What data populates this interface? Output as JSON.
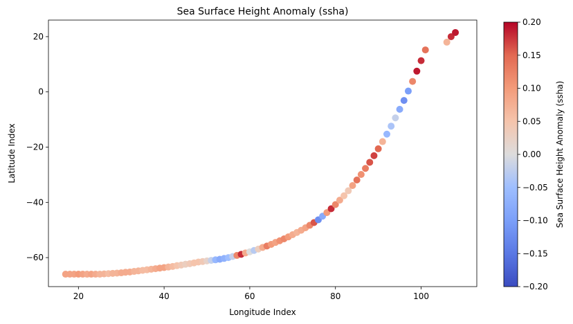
{
  "chart_data": {
    "type": "scatter",
    "title": "Sea Surface Height Anomaly (ssha)",
    "xlabel": "Longitude Index",
    "ylabel": "Latitude Index",
    "xlim": [
      13,
      113
    ],
    "ylim": [
      -70.5,
      26
    ],
    "xticks": [
      20,
      40,
      60,
      80,
      100
    ],
    "yticks": [
      20,
      0,
      -20,
      -40,
      -60
    ],
    "colorbar": {
      "label": "Sea Surface Height Anomaly (ssha)",
      "colormap": "coolwarm",
      "min": -0.2,
      "max": 0.2,
      "ticks": [
        "0.20",
        "0.15",
        "0.10",
        "0.05",
        "0.00",
        "−0.05",
        "−0.10",
        "−0.15",
        "−0.20"
      ],
      "tick_values": [
        0.2,
        0.15,
        0.1,
        0.05,
        0.0,
        -0.05,
        -0.1,
        -0.15,
        -0.2
      ]
    },
    "points": [
      [
        17,
        -66,
        0.09
      ],
      [
        18,
        -66,
        0.09
      ],
      [
        19,
        -66,
        0.09
      ],
      [
        20,
        -66,
        0.1
      ],
      [
        21,
        -66,
        0.09
      ],
      [
        22,
        -66,
        0.08
      ],
      [
        23,
        -66,
        0.09
      ],
      [
        24,
        -66,
        0.08
      ],
      [
        25,
        -66,
        0.07
      ],
      [
        26,
        -65.9,
        0.07
      ],
      [
        27,
        -65.8,
        0.06
      ],
      [
        28,
        -65.7,
        0.07
      ],
      [
        29,
        -65.6,
        0.07
      ],
      [
        30,
        -65.5,
        0.08
      ],
      [
        31,
        -65.3,
        0.08
      ],
      [
        32,
        -65.2,
        0.08
      ],
      [
        33,
        -65,
        0.07
      ],
      [
        34,
        -64.8,
        0.07
      ],
      [
        35,
        -64.6,
        0.06
      ],
      [
        36,
        -64.4,
        0.06
      ],
      [
        37,
        -64.2,
        0.07
      ],
      [
        38,
        -64,
        0.08
      ],
      [
        39,
        -63.8,
        0.09
      ],
      [
        40,
        -63.6,
        0.09
      ],
      [
        41,
        -63.4,
        0.07
      ],
      [
        42,
        -63.2,
        0.06
      ],
      [
        43,
        -62.9,
        0.05
      ],
      [
        44,
        -62.7,
        0.04
      ],
      [
        45,
        -62.4,
        0.03
      ],
      [
        46,
        -62.2,
        0.04
      ],
      [
        47,
        -61.9,
        0.05
      ],
      [
        48,
        -61.6,
        0.05
      ],
      [
        49,
        -61.4,
        0.04
      ],
      [
        50,
        -61.2,
        0.02
      ],
      [
        51,
        -61,
        -0.02
      ],
      [
        52,
        -60.8,
        -0.06
      ],
      [
        53,
        -60.6,
        -0.08
      ],
      [
        54,
        -60.3,
        -0.07
      ],
      [
        55,
        -60,
        -0.05
      ],
      [
        56,
        -59.6,
        -0.02
      ],
      [
        57,
        -59.2,
        0.12
      ],
      [
        58,
        -58.8,
        0.18
      ],
      [
        59,
        -58.3,
        0.08
      ],
      [
        60,
        -57.9,
        0
      ],
      [
        61,
        -57.4,
        -0.03
      ],
      [
        62,
        -56.9,
        0.03
      ],
      [
        63,
        -56.3,
        0.08
      ],
      [
        64,
        -55.8,
        0.13
      ],
      [
        65,
        -55.2,
        0.1
      ],
      [
        66,
        -54.5,
        0.09
      ],
      [
        67,
        -53.9,
        0.11
      ],
      [
        68,
        -53.2,
        0.12
      ],
      [
        69,
        -52.5,
        0.1
      ],
      [
        70,
        -51.7,
        0.08
      ],
      [
        71,
        -50.9,
        0.07
      ],
      [
        72,
        -50.1,
        0.08
      ],
      [
        73,
        -49.2,
        0.09
      ],
      [
        74,
        -48.3,
        0.12
      ],
      [
        75,
        -47.3,
        0.16
      ],
      [
        76,
        -46.3,
        -0.12
      ],
      [
        77,
        -45,
        -0.08
      ],
      [
        78,
        -43.7,
        0.1
      ],
      [
        79,
        -42.3,
        0.18
      ],
      [
        80,
        -40.8,
        0.12
      ],
      [
        81,
        -39.2,
        0.08
      ],
      [
        82,
        -37.6,
        0.05
      ],
      [
        83,
        -35.8,
        0.04
      ],
      [
        84,
        -33.9,
        0.09
      ],
      [
        85,
        -31.9,
        0.14
      ],
      [
        86,
        -29.9,
        0.11
      ],
      [
        87,
        -27.7,
        0.13
      ],
      [
        88,
        -25.5,
        0.16
      ],
      [
        89,
        -23.1,
        0.17
      ],
      [
        90,
        -20.6,
        0.15
      ],
      [
        91,
        -18,
        0.07
      ],
      [
        92,
        -15.3,
        -0.06
      ],
      [
        93,
        -12.4,
        -0.04
      ],
      [
        94,
        -9.4,
        -0.02
      ],
      [
        95,
        -6.3,
        -0.08
      ],
      [
        96,
        -3.1,
        -0.12
      ],
      [
        97,
        0.3,
        -0.1
      ],
      [
        98,
        3.8,
        0.12
      ],
      [
        99,
        7.5,
        0.19
      ],
      [
        100,
        11.3,
        0.18
      ],
      [
        101,
        15.2,
        0.14
      ],
      [
        106,
        18,
        0.07
      ],
      [
        107,
        20,
        0.18
      ],
      [
        108,
        21.5,
        0.19
      ]
    ]
  }
}
